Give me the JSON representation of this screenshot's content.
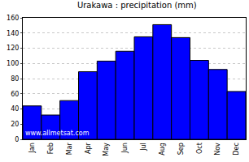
{
  "chart_data": {
    "type": "bar",
    "title": "Urakawa : precipitation (mm)",
    "categories": [
      "Jan",
      "Feb",
      "Mar",
      "Apr",
      "May",
      "Jun",
      "Jul",
      "Aug",
      "Sep",
      "Oct",
      "Nov",
      "Dec"
    ],
    "values": [
      44,
      32,
      51,
      89,
      103,
      116,
      135,
      151,
      134,
      104,
      92,
      63
    ],
    "color": "#0000ff",
    "ylim": [
      0,
      160
    ],
    "yticks": [
      0,
      20,
      40,
      60,
      80,
      100,
      120,
      140,
      160
    ],
    "grid": true,
    "annotations": [
      "www.allmetsat.com"
    ]
  }
}
